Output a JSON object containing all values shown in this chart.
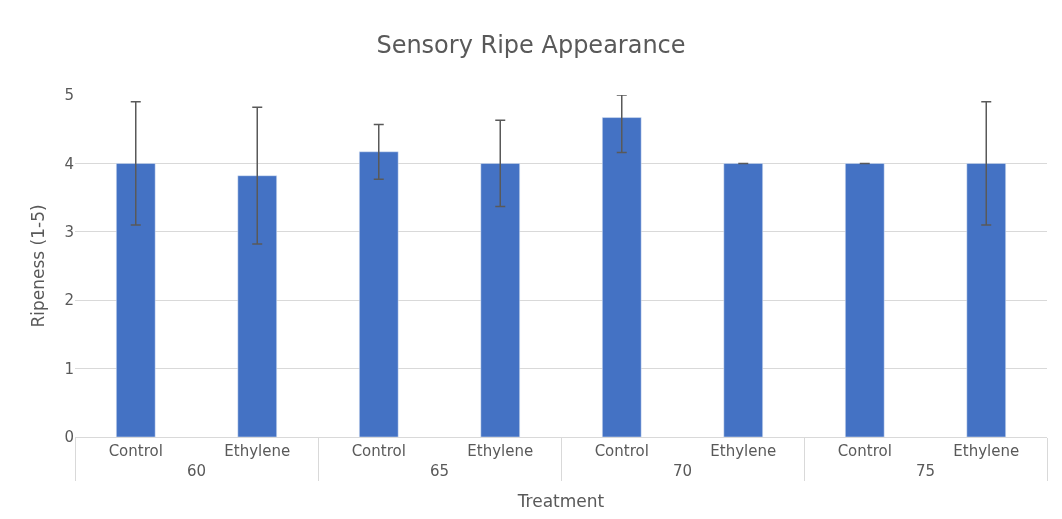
{
  "chart_data": {
    "type": "bar",
    "title": "Sensory Ripe Appearance",
    "xlabel": "Treatment",
    "ylabel": "Ripeness (1-5)",
    "categories": [
      "Control",
      "Ethylene",
      "Control",
      "Ethylene",
      "Control",
      "Ethylene",
      "Control",
      "Ethylene"
    ],
    "annotations": [
      "60",
      "65",
      "70",
      "75"
    ],
    "values": [
      4.0,
      3.82,
      4.17,
      4.0,
      4.67,
      4.0,
      4.0,
      4.0
    ],
    "errors": [
      0.9,
      1.0,
      0.4,
      0.63,
      [
        4.16,
        5.0
      ],
      0,
      0,
      0.9
    ],
    "color": "#4472c4",
    "ylim": [
      0,
      5
    ],
    "yticks": [
      0,
      1,
      2,
      3,
      4,
      5
    ],
    "grid": "y"
  }
}
